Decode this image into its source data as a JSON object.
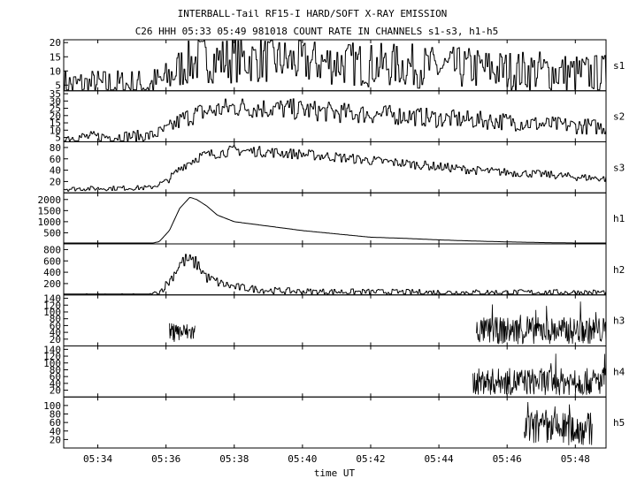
{
  "chart_data": {
    "type": "line",
    "title": "INTERBALL-Tail RF15-I HARD/SOFT X-RAY EMISSION",
    "subtitle": "C26 HHH 05:33 05:49 981018  COUNT RATE IN CHANNELS s1-s3, h1-h5",
    "xlabel": "time UT",
    "x_tick_labels": [
      "05:34",
      "05:36",
      "05:38",
      "05:40",
      "05:42",
      "05:44",
      "05:46",
      "05:48"
    ],
    "x_ticks_minutes": [
      34,
      36,
      38,
      40,
      42,
      44,
      46,
      48
    ],
    "xlim_minutes": [
      33.0,
      48.9
    ],
    "x_unit": "minutes after 05:00 UT",
    "grid": false,
    "panels": [
      {
        "name": "s1",
        "ylim": [
          3,
          21
        ],
        "yticks": [
          5,
          10,
          15,
          20
        ],
        "ytick_labels": [
          "5",
          "10",
          "15",
          "20"
        ],
        "points": [
          [
            33.0,
            5
          ],
          [
            35.5,
            5
          ],
          [
            36.0,
            7
          ],
          [
            36.5,
            12
          ],
          [
            37.0,
            14
          ],
          [
            38.0,
            14
          ],
          [
            39.0,
            14
          ],
          [
            40.0,
            13
          ],
          [
            41.0,
            13
          ],
          [
            42.0,
            12
          ],
          [
            43.0,
            12
          ],
          [
            44.0,
            11
          ],
          [
            45.0,
            11
          ],
          [
            46.0,
            10
          ],
          [
            47.0,
            10
          ],
          [
            48.0,
            9
          ],
          [
            48.9,
            9
          ]
        ],
        "noise": 3.5,
        "noise_base": 2.0
      },
      {
        "name": "s2",
        "ylim": [
          2,
          37
        ],
        "yticks": [
          5,
          10,
          15,
          20,
          25,
          30,
          35
        ],
        "ytick_labels": [
          "5",
          "10",
          "15",
          "20",
          "25",
          "30",
          "35"
        ],
        "points": [
          [
            33.0,
            5
          ],
          [
            35.5,
            6
          ],
          [
            36.0,
            10
          ],
          [
            36.5,
            18
          ],
          [
            37.0,
            22
          ],
          [
            38.0,
            26
          ],
          [
            39.0,
            25
          ],
          [
            40.0,
            24
          ],
          [
            41.0,
            22
          ],
          [
            42.0,
            21
          ],
          [
            43.0,
            20
          ],
          [
            44.0,
            18
          ],
          [
            45.0,
            17
          ],
          [
            46.0,
            16
          ],
          [
            47.0,
            14
          ],
          [
            48.0,
            13
          ],
          [
            48.9,
            12
          ]
        ],
        "noise": 3.5,
        "noise_base": 1.0
      },
      {
        "name": "s3",
        "ylim": [
          0,
          90
        ],
        "yticks": [
          20,
          40,
          60,
          80
        ],
        "ytick_labels": [
          "20",
          "40",
          "60",
          "80"
        ],
        "points": [
          [
            33.0,
            7
          ],
          [
            35.5,
            9
          ],
          [
            36.0,
            20
          ],
          [
            36.5,
            48
          ],
          [
            37.0,
            65
          ],
          [
            38.0,
            75
          ],
          [
            39.0,
            72
          ],
          [
            40.0,
            68
          ],
          [
            41.0,
            63
          ],
          [
            42.0,
            57
          ],
          [
            43.0,
            52
          ],
          [
            44.0,
            46
          ],
          [
            45.0,
            40
          ],
          [
            46.0,
            36
          ],
          [
            47.0,
            33
          ],
          [
            48.0,
            28
          ],
          [
            48.9,
            25
          ]
        ],
        "noise": 4.0,
        "noise_base": 1.5
      },
      {
        "name": "h1",
        "ylim": [
          0,
          2300
        ],
        "yticks": [
          500,
          1000,
          1500,
          2000
        ],
        "ytick_labels": [
          "500",
          "1000",
          "1500",
          "2000"
        ],
        "points": [
          [
            33.0,
            0
          ],
          [
            35.5,
            0
          ],
          [
            35.8,
            100
          ],
          [
            36.1,
            600
          ],
          [
            36.4,
            1600
          ],
          [
            36.7,
            2100
          ],
          [
            36.9,
            2000
          ],
          [
            37.2,
            1700
          ],
          [
            37.5,
            1300
          ],
          [
            38.0,
            1000
          ],
          [
            39.0,
            800
          ],
          [
            40.0,
            600
          ],
          [
            41.0,
            450
          ],
          [
            42.0,
            300
          ],
          [
            43.0,
            250
          ],
          [
            44.0,
            180
          ],
          [
            45.0,
            130
          ],
          [
            46.0,
            90
          ],
          [
            47.0,
            60
          ],
          [
            48.0,
            40
          ],
          [
            48.9,
            30
          ]
        ],
        "noise": 0,
        "noise_base": 0
      },
      {
        "name": "h2",
        "ylim": [
          0,
          900
        ],
        "yticks": [
          200,
          400,
          600,
          800
        ],
        "ytick_labels": [
          "200",
          "400",
          "600",
          "800"
        ],
        "points": [
          [
            33.0,
            0
          ],
          [
            35.5,
            0
          ],
          [
            35.8,
            50
          ],
          [
            36.1,
            250
          ],
          [
            36.4,
            550
          ],
          [
            36.6,
            620
          ],
          [
            36.9,
            550
          ],
          [
            37.2,
            300
          ],
          [
            37.6,
            200
          ],
          [
            38.0,
            140
          ],
          [
            39.0,
            80
          ],
          [
            40.0,
            60
          ],
          [
            44.0,
            45
          ],
          [
            48.9,
            45
          ]
        ],
        "noise": 60,
        "noise_base": 20
      },
      {
        "name": "h3",
        "ylim": [
          0,
          150
        ],
        "yticks": [
          20,
          40,
          60,
          80,
          100,
          120,
          140
        ],
        "ytick_labels": [
          "20",
          "40",
          "60",
          "80",
          "100",
          "120",
          "140"
        ],
        "segments": [
          {
            "x": [
              36.1,
              36.85
            ],
            "mean": 40,
            "spread": 28
          },
          {
            "x": [
              45.1,
              48.9
            ],
            "mean": 45,
            "spread": 40
          }
        ]
      },
      {
        "name": "h4",
        "ylim": [
          0,
          150
        ],
        "yticks": [
          20,
          40,
          60,
          80,
          100,
          120,
          140
        ],
        "ytick_labels": [
          "20",
          "40",
          "60",
          "80",
          "100",
          "120",
          "140"
        ],
        "segments": [
          {
            "x": [
              45.0,
              48.9
            ],
            "mean": 45,
            "spread": 40
          }
        ]
      },
      {
        "name": "h5",
        "ylim": [
          0,
          120
        ],
        "yticks": [
          20,
          40,
          60,
          80,
          100
        ],
        "ytick_labels": [
          "20",
          "40",
          "60",
          "80",
          "100"
        ],
        "segments": [
          {
            "x": [
              46.5,
              48.5
            ],
            "mean": 45,
            "spread": 40
          }
        ]
      }
    ]
  }
}
